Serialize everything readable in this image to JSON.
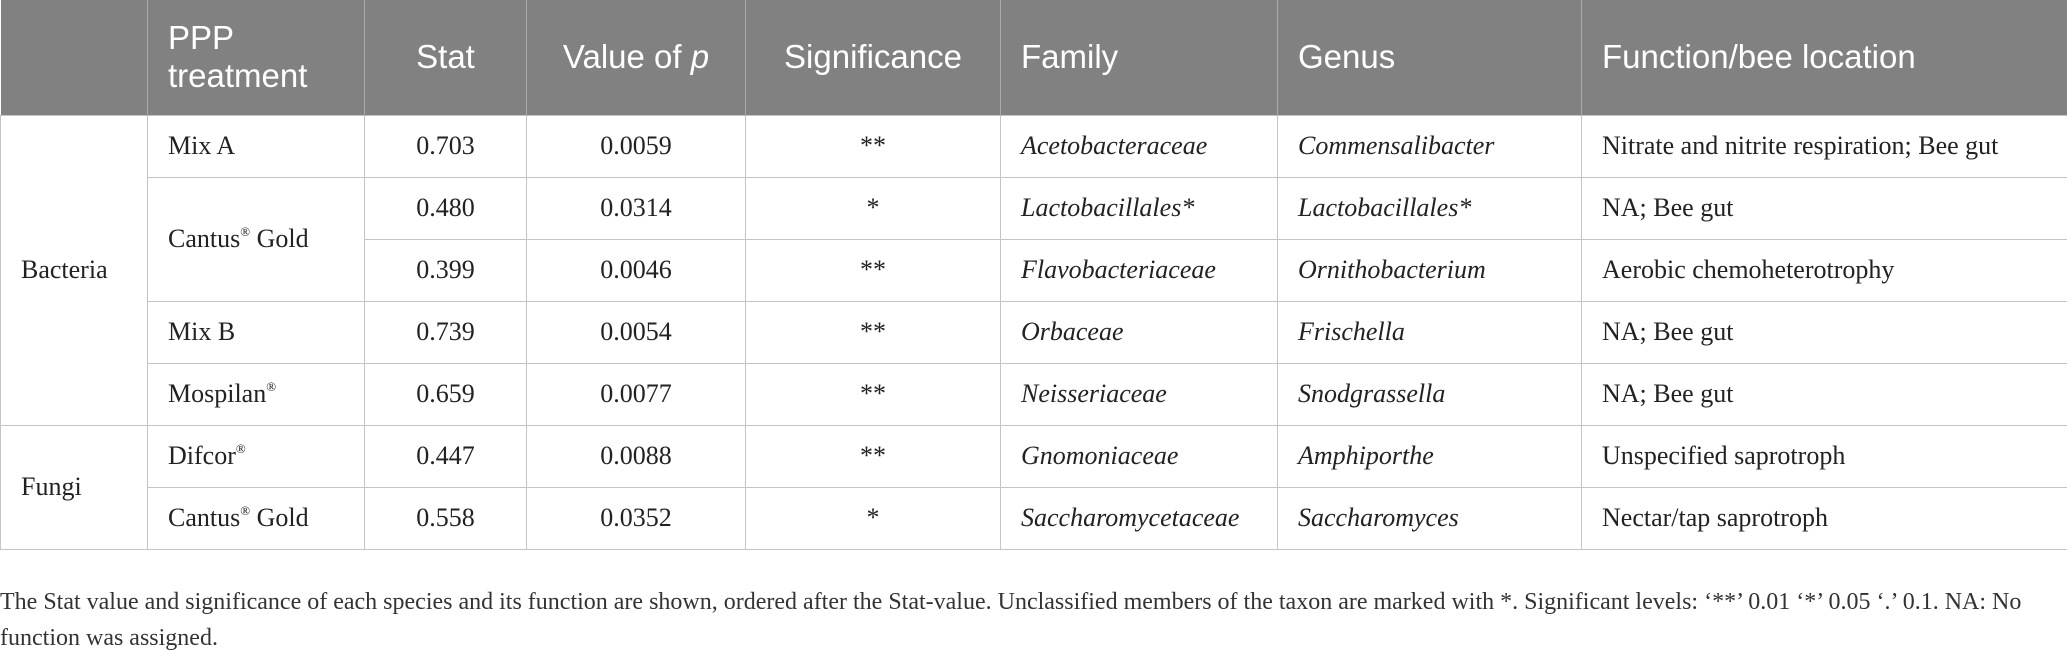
{
  "headers": {
    "group": "",
    "treatment": "PPP treatment",
    "stat": "Stat",
    "p_prefix": "Value of ",
    "p_letter": "p",
    "significance": "Significance",
    "family": "Family",
    "genus": "Genus",
    "function": "Function/bee location"
  },
  "groups": {
    "bacteria": "Bacteria",
    "fungi": "Fungi"
  },
  "rows": [
    {
      "treatment": "Mix A",
      "stat": "0.703",
      "p": "0.0059",
      "sig": "**",
      "family": "Acetobacteraceae",
      "genus": "Commensalibacter",
      "function": "Nitrate and nitrite respiration; Bee gut"
    },
    {
      "treatment": "Cantus",
      "treatment_mark": "®",
      "treatment_suffix": " Gold",
      "stat": "0.480",
      "p": "0.0314",
      "sig": "*",
      "family": "Lactobacillales*",
      "genus": "Lactobacillales*",
      "function": "NA; Bee gut"
    },
    {
      "stat": "0.399",
      "p": "0.0046",
      "sig": "**",
      "family": "Flavobacteriaceae",
      "genus": "Ornithobacterium",
      "function": "Aerobic chemoheterotrophy"
    },
    {
      "treatment": "Mix B",
      "stat": "0.739",
      "p": "0.0054",
      "sig": "**",
      "family": "Orbaceae",
      "genus": "Frischella",
      "function": "NA; Bee gut"
    },
    {
      "treatment": "Mospilan",
      "treatment_mark": "®",
      "stat": "0.659",
      "p": "0.0077",
      "sig": "**",
      "family": "Neisseriaceae",
      "genus": "Snodgrassella",
      "function": "NA; Bee gut"
    },
    {
      "treatment": "Difcor",
      "treatment_mark": "®",
      "stat": "0.447",
      "p": "0.0088",
      "sig": "**",
      "family": "Gnomoniaceae",
      "genus": "Amphiporthe",
      "function": "Unspecified saprotroph"
    },
    {
      "treatment": "Cantus",
      "treatment_mark": "®",
      "treatment_suffix": " Gold",
      "stat": "0.558",
      "p": "0.0352",
      "sig": "*",
      "family": "Saccharomycetaceae",
      "genus": "Saccharomyces",
      "function": "Nectar/tap saprotroph"
    }
  ],
  "footnote": "The Stat value and significance of each species and its function are shown, ordered after the Stat-value. Unclassified members of the taxon are marked with *. Significant levels: ‘**’ 0.01 ‘*’ 0.05 ‘.’ 0.1. NA: No function was assigned."
}
